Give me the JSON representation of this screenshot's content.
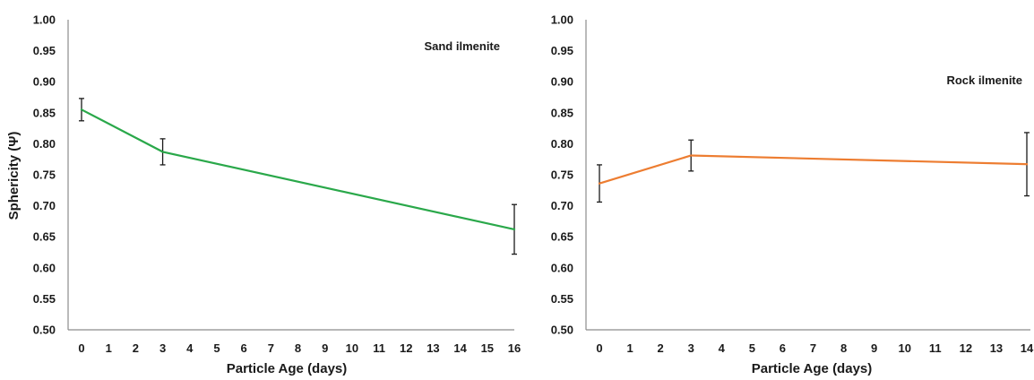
{
  "chart_data": [
    {
      "type": "line",
      "annotation": "Sand ilmenite",
      "xlabel": "Particle Age (days)",
      "ylabel": "Sphericity (Ψ)",
      "xlim": [
        0,
        16
      ],
      "ylim": [
        0.5,
        1.0
      ],
      "x_ticks": [
        "0",
        "1",
        "2",
        "3",
        "4",
        "5",
        "6",
        "7",
        "8",
        "9",
        "10",
        "11",
        "12",
        "13",
        "14",
        "15",
        "16"
      ],
      "y_ticks": [
        "0.50",
        "0.55",
        "0.60",
        "0.65",
        "0.70",
        "0.75",
        "0.80",
        "0.85",
        "0.90",
        "0.95",
        "1.00"
      ],
      "color": "#2aa84a",
      "series": [
        {
          "x": [
            0,
            3,
            16
          ],
          "y": [
            0.855,
            0.787,
            0.662
          ],
          "err": [
            0.018,
            0.021,
            0.04
          ]
        }
      ]
    },
    {
      "type": "line",
      "annotation": "Rock ilmenite",
      "xlabel": "Particle Age (days)",
      "ylabel": "",
      "xlim": [
        0,
        14
      ],
      "ylim": [
        0.5,
        1.0
      ],
      "x_ticks": [
        "0",
        "1",
        "2",
        "3",
        "4",
        "5",
        "6",
        "7",
        "8",
        "9",
        "10",
        "11",
        "12",
        "13",
        "14"
      ],
      "y_ticks": [
        "0.50",
        "0.55",
        "0.60",
        "0.65",
        "0.70",
        "0.75",
        "0.80",
        "0.85",
        "0.90",
        "0.95",
        "1.00"
      ],
      "color": "#ed7d31",
      "series": [
        {
          "x": [
            0,
            3,
            14
          ],
          "y": [
            0.736,
            0.781,
            0.767
          ],
          "err": [
            0.03,
            0.025,
            0.051
          ]
        }
      ]
    }
  ]
}
